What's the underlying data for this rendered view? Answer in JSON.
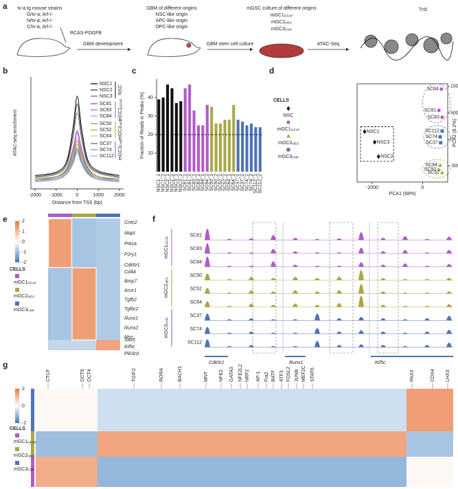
{
  "panel_labels": [
    "a",
    "b",
    "c",
    "d",
    "e",
    "f",
    "g"
  ],
  "legend_title": "CELLS",
  "groups": [
    {
      "name": "NSC",
      "color": "#111111"
    },
    {
      "name": {
        "main": "mGC1",
        "sub": "GFAP"
      },
      "color": "#b05cc8"
    },
    {
      "name": {
        "main": "mGC2",
        "sub": "NES"
      },
      "color": "#a9a846"
    },
    {
      "name": {
        "main": "mGC3",
        "sub": "CNP"
      },
      "color": "#4f73b5"
    }
  ],
  "a": {
    "strains_title": "tv-a tg mouse strains",
    "strains": [
      "G/tv-a; Arf-/-",
      "N/tv-a; Arf-/-",
      "C/tv-a; Arf-/-"
    ],
    "virus": "RCAS-PDGFB",
    "step1": "GBM development",
    "gbm_title": "GBM of different origins",
    "origins": [
      "NSC-like origin",
      "APC-like origin",
      "OPC-like origin"
    ],
    "step2": "GBM stem cell culture",
    "culture_title": "mGSC culture of different origins",
    "cultures": [
      {
        "main": "mGC1",
        "sub": "GFAP"
      },
      {
        "main": "mGC2",
        "sub": "NES"
      },
      {
        "main": "mGC3",
        "sub": "CNP"
      }
    ],
    "step3": "ATAC-Seq",
    "enzyme": "Tn5"
  },
  "b": {
    "chart_data": {
      "type": "line",
      "xlabel": "Distance from TSS (bp)",
      "ylabel": "ATAC-seq enrichment",
      "x": [
        -2000,
        -1000,
        -500,
        -200,
        0,
        200,
        500,
        1000,
        2000
      ],
      "xlim": [
        -2200,
        2200
      ],
      "xticks": [
        -2000,
        -1000,
        0,
        1000,
        2000
      ],
      "ylim": [
        0,
        10
      ],
      "series": [
        {
          "name": "NSC1",
          "color": "#000000",
          "values": [
            1.2,
            1.5,
            2.5,
            5.5,
            8.3,
            5.5,
            2.6,
            1.6,
            1.2
          ]
        },
        {
          "name": "NSC2",
          "color": "#333333",
          "values": [
            1.1,
            1.4,
            2.3,
            5.0,
            7.6,
            5.0,
            2.4,
            1.5,
            1.1
          ]
        },
        {
          "name": "NSC3",
          "color": "#666666",
          "values": [
            1.0,
            1.3,
            2.1,
            4.5,
            6.8,
            4.5,
            2.2,
            1.4,
            1.0
          ]
        },
        {
          "name": "SC81",
          "color": "#8e3fae",
          "values": [
            0.8,
            1.1,
            1.8,
            3.6,
            5.2,
            3.6,
            1.9,
            1.1,
            0.8
          ]
        },
        {
          "name": "SC83",
          "color": "#b05cc8",
          "values": [
            0.8,
            1.0,
            1.7,
            3.4,
            5.0,
            3.4,
            1.8,
            1.0,
            0.8
          ]
        },
        {
          "name": "SC84",
          "color": "#c98bdc",
          "values": [
            0.7,
            1.0,
            1.6,
            3.1,
            4.6,
            3.1,
            1.7,
            1.0,
            0.7
          ]
        },
        {
          "name": "SC50",
          "color": "#8a8a30",
          "values": [
            0.9,
            1.1,
            1.7,
            3.0,
            4.3,
            3.0,
            1.8,
            1.1,
            0.9
          ]
        },
        {
          "name": "SC52",
          "color": "#a9a846",
          "values": [
            0.8,
            1.0,
            1.6,
            2.8,
            4.0,
            2.8,
            1.7,
            1.0,
            0.8
          ]
        },
        {
          "name": "SC64",
          "color": "#c6c47a",
          "values": [
            0.8,
            1.0,
            1.5,
            2.6,
            3.8,
            2.6,
            1.6,
            1.0,
            0.8
          ]
        },
        {
          "name": "SC37",
          "color": "#3f5f9e",
          "values": [
            0.7,
            0.9,
            1.4,
            2.5,
            3.6,
            2.5,
            1.5,
            0.9,
            0.7
          ]
        },
        {
          "name": "SC74",
          "color": "#6f8fc8",
          "values": [
            0.7,
            0.9,
            1.4,
            2.4,
            3.4,
            2.4,
            1.4,
            0.9,
            0.7
          ]
        },
        {
          "name": "SC112",
          "color": "#9aaed6",
          "values": [
            0.6,
            0.8,
            1.3,
            2.2,
            3.2,
            2.2,
            1.3,
            0.8,
            0.6
          ]
        }
      ]
    }
  },
  "c": {
    "chart_data": {
      "type": "bar",
      "ylabel": "Fraction of Reads in Peaks (%)",
      "categories": [
        "NSC1_1",
        "NSC1_2",
        "NSC2_1",
        "NSC2_2",
        "NSC3_1",
        "NSC3_2",
        "SC81_1",
        "SC81_2",
        "SC83_1",
        "SC83_2",
        "SC84_1",
        "SC84_2",
        "SC50_1",
        "SC50_2",
        "SC52_1",
        "SC52_2",
        "SC64_1",
        "SC64_2",
        "SC37_1",
        "SC37_2",
        "SC74_1",
        "SC74_2",
        "SC112_1",
        "SC112_2"
      ],
      "values": [
        39,
        40,
        47,
        45,
        37,
        38,
        45,
        47,
        33,
        25,
        25,
        36,
        35,
        26,
        26,
        28,
        28,
        36,
        28,
        27,
        25,
        26,
        24,
        24
      ],
      "ylim": [
        0,
        50
      ],
      "yticks": [
        10,
        20,
        30,
        40
      ],
      "reference_line": 20
    }
  },
  "d": {
    "chart_data": {
      "type": "scatter",
      "xlabel": "PCA1 (68%)",
      "ylabel": "PCA2 (8.2%)",
      "xlim": [
        -2600,
        1000
      ],
      "xticks": [
        -2000,
        0
      ],
      "ylim": [
        -800,
        1050
      ],
      "yticks": [
        -500,
        0,
        500,
        1000
      ],
      "series": [
        {
          "name": "NSC",
          "color": "#111111",
          "marker": "diamond",
          "points": [
            {
              "label": "NSC1",
              "x": -2300,
              "y": 150
            },
            {
              "label": "NSC3",
              "x": -1900,
              "y": -50
            },
            {
              "label": "NSC2",
              "x": -1750,
              "y": -320
            }
          ]
        },
        {
          "name": {
            "main": "mGC1",
            "sub": "GFAP"
          },
          "color": "#b05cc8",
          "marker": "circle",
          "points": [
            {
              "label": "SC84",
              "x": 750,
              "y": 950
            },
            {
              "label": "SC81",
              "x": 650,
              "y": 550
            },
            {
              "label": "SC83",
              "x": 780,
              "y": 420
            }
          ]
        },
        {
          "name": {
            "main": "mGC2",
            "sub": "NES"
          },
          "color": "#a9a846",
          "marker": "triangle",
          "points": [
            {
              "label": "SC64",
              "x": 700,
              "y": -480
            },
            {
              "label": "SC50",
              "x": 650,
              "y": -560
            },
            {
              "label": "SC52",
              "x": 780,
              "y": -620
            }
          ]
        },
        {
          "name": {
            "main": "mGC3",
            "sub": "CNP"
          },
          "color": "#4f73b5",
          "marker": "square",
          "points": [
            {
              "label": "SC112",
              "x": 780,
              "y": 160
            },
            {
              "label": "SC74",
              "x": 700,
              "y": 50
            },
            {
              "label": "SC37",
              "x": 720,
              "y": -60
            }
          ]
        }
      ]
    }
  },
  "e": {
    "colorbar": {
      "lim": [
        -2,
        2
      ],
      "ticks": [
        2,
        1,
        0,
        -1,
        -2
      ]
    },
    "blocks": [
      [
        1.4,
        -0.9,
        -0.8
      ],
      [
        -0.9,
        1.4,
        -0.8
      ],
      [
        -0.6,
        -0.6,
        1.3
      ]
    ],
    "gene_groups": [
      [
        "Cntn2",
        "Mapt",
        "Prkca",
        "P2ry1",
        "Cdk5r1"
      ],
      [
        "Cd44",
        "Bmp7",
        "Acvr1",
        "Tgfb2",
        "Tgfbr2",
        "Runx1",
        "Runx2",
        "Myc"
      ],
      [
        "Sox5",
        "Kif5c",
        "Pik3cd"
      ]
    ]
  },
  "f": {
    "ylim": [
      0,
      1
    ],
    "genes": [
      "Cdk5r1",
      "Runx1",
      "Kif5c"
    ],
    "tracks": [
      {
        "name": "SC81",
        "peaks": [
          1.0,
          0.1,
          0.15,
          0.45,
          0.2,
          0.1,
          0.15,
          0.7,
          0.2,
          0.35,
          0.1,
          0.3
        ]
      },
      {
        "name": "SC83",
        "peaks": [
          0.9,
          0.1,
          0.1,
          0.4,
          0.2,
          0.1,
          0.1,
          0.5,
          0.2,
          0.3,
          0.1,
          0.3
        ]
      },
      {
        "name": "SC84",
        "peaks": [
          0.9,
          0.1,
          0.1,
          0.5,
          0.2,
          0.1,
          0.1,
          0.4,
          0.2,
          0.3,
          0.1,
          0.25
        ]
      },
      {
        "name": "SC50",
        "peaks": [
          0.6,
          0.1,
          0.3,
          0.2,
          0.3,
          0.2,
          0.3,
          0.9,
          0.2,
          0.1,
          0.1,
          0.2
        ]
      },
      {
        "name": "SC52",
        "peaks": [
          0.5,
          0.1,
          0.3,
          0.2,
          0.3,
          0.2,
          0.3,
          0.85,
          0.2,
          0.1,
          0.1,
          0.2
        ]
      },
      {
        "name": "SC64",
        "peaks": [
          0.5,
          0.1,
          0.3,
          0.2,
          0.3,
          0.2,
          0.35,
          1.0,
          0.2,
          0.1,
          0.1,
          0.25
        ]
      },
      {
        "name": "SC37",
        "peaks": [
          0.6,
          0.1,
          0.2,
          0.1,
          0.1,
          0.6,
          0.2,
          0.3,
          0.2,
          0.1,
          0.2,
          0.4
        ]
      },
      {
        "name": "SC74",
        "peaks": [
          0.6,
          0.1,
          0.2,
          0.1,
          0.1,
          0.5,
          0.2,
          0.3,
          0.2,
          0.1,
          0.2,
          0.35
        ]
      },
      {
        "name": "SC112",
        "peaks": [
          0.7,
          0.1,
          0.2,
          0.1,
          0.1,
          0.55,
          0.2,
          0.25,
          0.2,
          0.1,
          0.2,
          0.4
        ]
      }
    ]
  },
  "g": {
    "colorbar": {
      "lim": [
        -2,
        2
      ],
      "ticks": [
        2,
        0,
        -2
      ]
    },
    "blocks": [
      [
        0.1,
        -0.5,
        1.4
      ],
      [
        -1.0,
        1.3,
        -0.9
      ],
      [
        1.2,
        -1.1,
        0.1
      ]
    ],
    "motifs": [
      "CTCF",
      "OCT6",
      "OCT4",
      "TGIF2",
      "RORA",
      "BACH1",
      "MNT",
      "NFE2",
      "GATA3",
      "NFE2L2",
      "NRF2",
      "AP-1",
      "Fra2",
      "BATF",
      "ATF3",
      "FOSL2",
      "JUNB",
      "MEF2C",
      "STAT6",
      "PAX3",
      "CDX4",
      "LHX3"
    ]
  }
}
